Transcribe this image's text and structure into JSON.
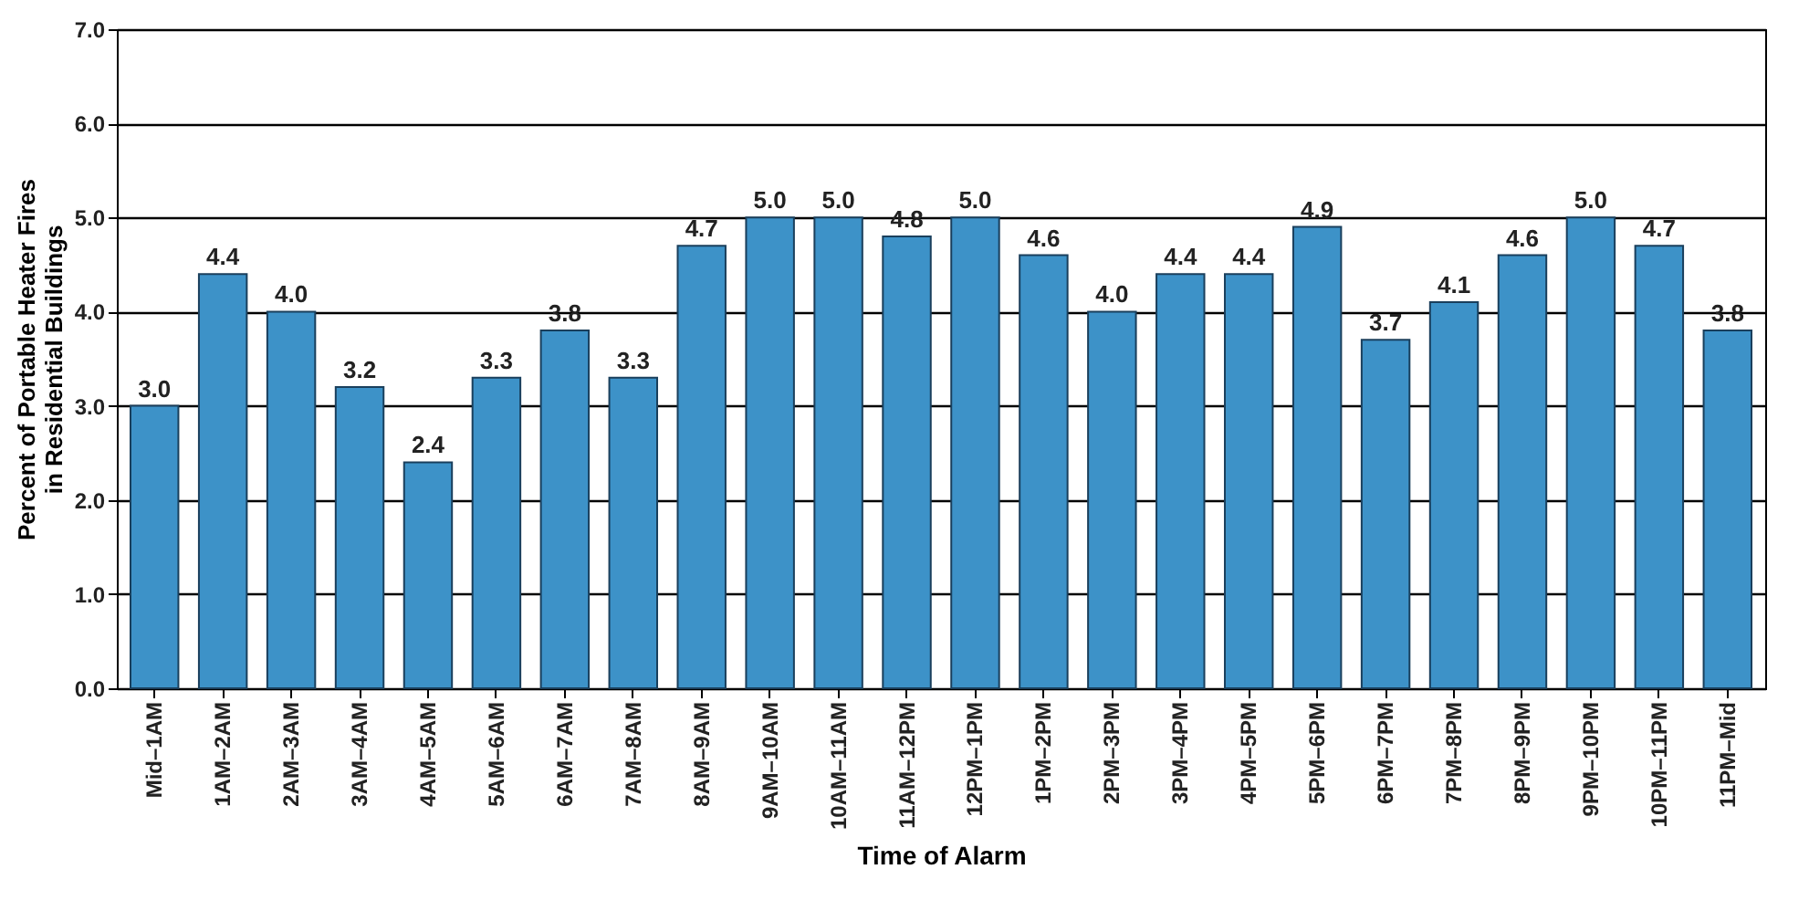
{
  "chart_data": {
    "type": "bar",
    "xlabel": "Time of Alarm",
    "ylabel": "Percent of Portable Heater Fires\nin Residential Buildings",
    "categories": [
      "Mid–1AM",
      "1AM–2AM",
      "2AM–3AM",
      "3AM–4AM",
      "4AM–5AM",
      "5AM–6AM",
      "6AM–7AM",
      "7AM–8AM",
      "8AM–9AM",
      "9AM–10AM",
      "10AM–11AM",
      "11AM–12PM",
      "12PM–1PM",
      "1PM–2PM",
      "2PM–3PM",
      "3PM–4PM",
      "4PM–5PM",
      "5PM–6PM",
      "6PM–7PM",
      "7PM–8PM",
      "8PM–9PM",
      "9PM–10PM",
      "10PM–11PM",
      "11PM–Mid"
    ],
    "values": [
      3.0,
      4.4,
      4.0,
      3.2,
      2.4,
      3.3,
      3.8,
      3.3,
      4.7,
      5.0,
      5.0,
      4.8,
      5.0,
      4.6,
      4.0,
      4.4,
      4.4,
      4.9,
      3.7,
      4.1,
      4.6,
      5.0,
      4.7,
      3.8
    ],
    "value_labels": [
      "3.0",
      "4.4",
      "4.0",
      "3.2",
      "2.4",
      "3.3",
      "3.8",
      "3.3",
      "4.7",
      "5.0",
      "5.0",
      "4.8",
      "5.0",
      "4.6",
      "4.0",
      "4.4",
      "4.4",
      "4.9",
      "3.7",
      "4.1",
      "4.6",
      "5.0",
      "4.7",
      "3.8"
    ],
    "color": "#3d92c8",
    "ylim": [
      0,
      7
    ],
    "yticks": [
      {
        "value": 0,
        "label": "0.0"
      },
      {
        "value": 1,
        "label": "1.0"
      },
      {
        "value": 2,
        "label": "2.0"
      },
      {
        "value": 3,
        "label": "3.0"
      },
      {
        "value": 4,
        "label": "4.0"
      },
      {
        "value": 5,
        "label": "5.0"
      },
      {
        "value": 6,
        "label": "6.0"
      },
      {
        "value": 7,
        "label": "7.0"
      }
    ],
    "grid": true
  }
}
